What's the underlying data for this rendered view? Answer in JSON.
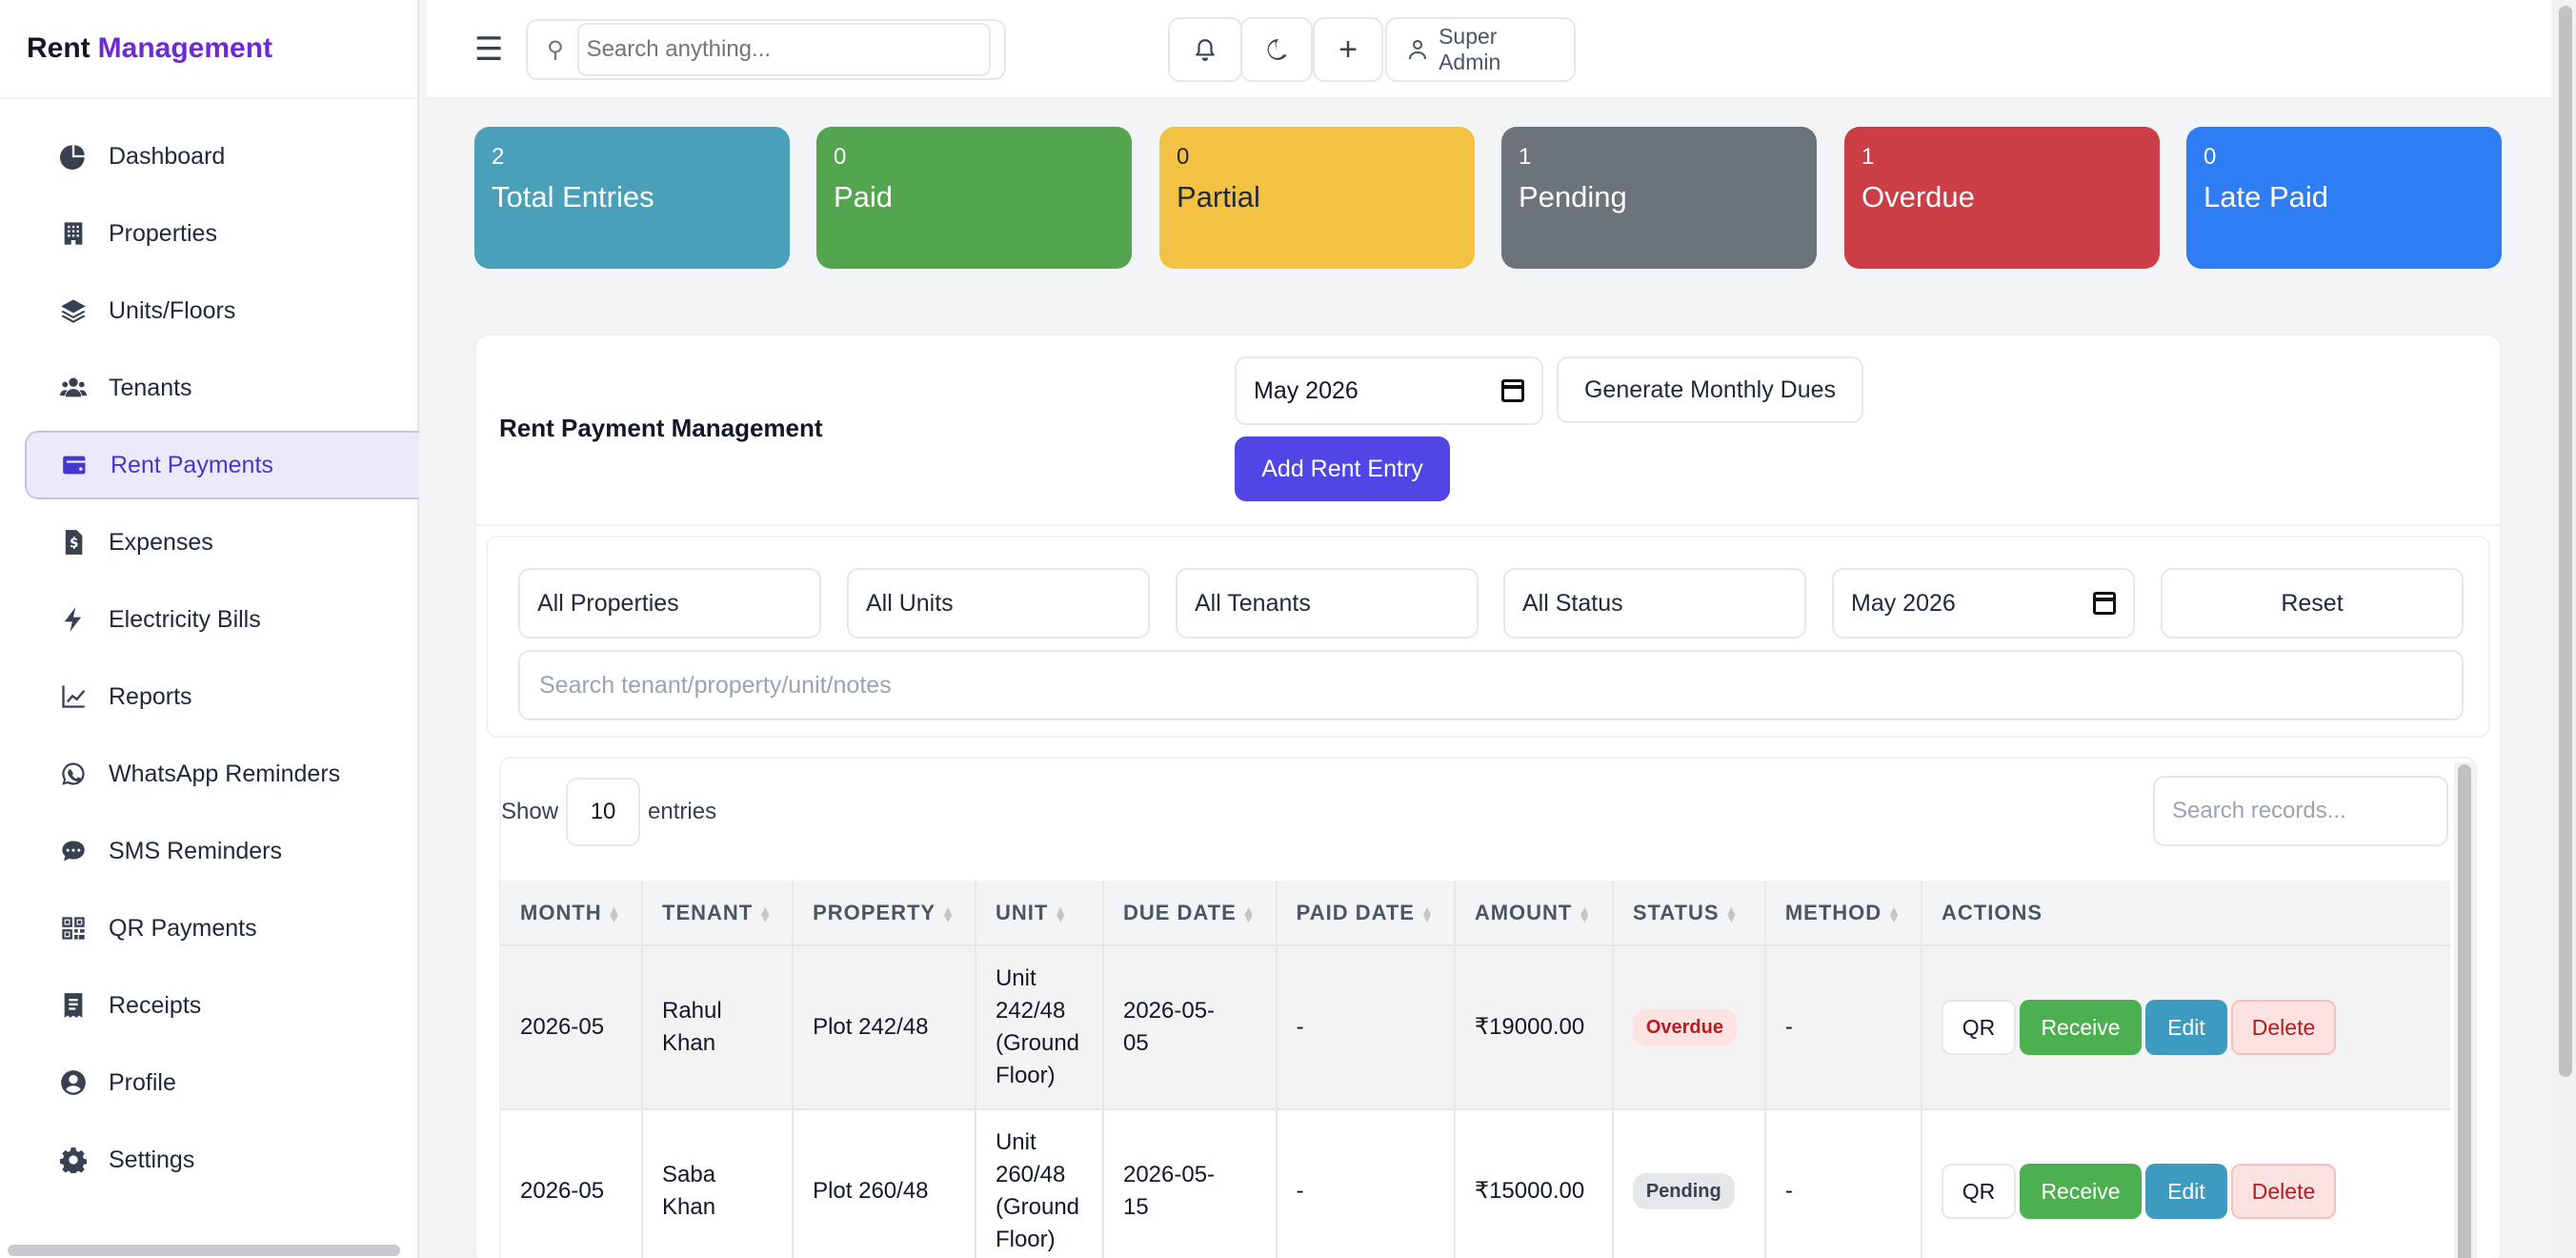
{
  "sidebar": {
    "brand_main": "Rent",
    "brand_accent": "Management",
    "items": [
      {
        "label": "Dashboard",
        "icon": "pie-chart-icon"
      },
      {
        "label": "Properties",
        "icon": "building-icon"
      },
      {
        "label": "Units/Floors",
        "icon": "layers-icon"
      },
      {
        "label": "Tenants",
        "icon": "users-icon"
      },
      {
        "label": "Rent Payments",
        "icon": "wallet-icon",
        "active": true
      },
      {
        "label": "Expenses",
        "icon": "invoice-icon"
      },
      {
        "label": "Electricity Bills",
        "icon": "bolt-icon"
      },
      {
        "label": "Reports",
        "icon": "line-chart-icon"
      },
      {
        "label": "WhatsApp Reminders",
        "icon": "whatsapp-icon"
      },
      {
        "label": "SMS Reminders",
        "icon": "sms-icon"
      },
      {
        "label": "QR Payments",
        "icon": "qrcode-icon"
      },
      {
        "label": "Receipts",
        "icon": "receipt-icon"
      },
      {
        "label": "Profile",
        "icon": "user-circle-icon"
      },
      {
        "label": "Settings",
        "icon": "gear-icon"
      }
    ]
  },
  "topbar": {
    "search_placeholder": "Search anything...",
    "user_label": "Super Admin"
  },
  "stats": [
    {
      "value": "2",
      "label": "Total Entries",
      "color": "#4aa0b8"
    },
    {
      "value": "0",
      "label": "Paid",
      "color": "#53a64f"
    },
    {
      "value": "0",
      "label": "Partial",
      "color": "#f4c243"
    },
    {
      "value": "1",
      "label": "Pending",
      "color": "#6c737a"
    },
    {
      "value": "1",
      "label": "Overdue",
      "color": "#cc3e45"
    },
    {
      "value": "0",
      "label": "Late Paid",
      "color": "#2f7df3"
    }
  ],
  "panel": {
    "title": "Rent Payment Management",
    "month_value": "May 2026",
    "generate_label": "Generate Monthly Dues",
    "add_label": "Add Rent Entry"
  },
  "filters": {
    "properties": "All Properties",
    "units": "All Units",
    "tenants": "All Tenants",
    "status": "All Status",
    "month": "May 2026",
    "reset_label": "Reset",
    "search_placeholder": "Search tenant/property/unit/notes"
  },
  "table": {
    "show_label": "Show",
    "length_value": "10",
    "entries_label": "entries",
    "search_placeholder": "Search records...",
    "headers": [
      "MONTH",
      "TENANT",
      "PROPERTY",
      "UNIT",
      "DUE DATE",
      "PAID DATE",
      "AMOUNT",
      "STATUS",
      "METHOD",
      "ACTIONS"
    ],
    "rows": [
      {
        "month": "2026-05",
        "tenant": [
          "Rahul",
          "Khan"
        ],
        "property": "Plot 242/48",
        "unit": [
          "Unit",
          "242/48",
          "(Ground",
          "Floor)"
        ],
        "due_date": [
          "2026-05-",
          "05"
        ],
        "paid_date": "-",
        "amount": "₹19000.00",
        "status": "Overdue",
        "method": "-"
      },
      {
        "month": "2026-05",
        "tenant": [
          "Saba",
          "Khan"
        ],
        "property": "Plot 260/48",
        "unit": [
          "Unit",
          "260/48",
          "(Ground",
          "Floor)"
        ],
        "due_date": [
          "2026-05-",
          "15"
        ],
        "paid_date": "-",
        "amount": "₹15000.00",
        "status": "Pending",
        "method": "-"
      }
    ],
    "actions": {
      "qr": "QR",
      "receive": "Receive",
      "edit": "Edit",
      "delete": "Delete"
    }
  }
}
